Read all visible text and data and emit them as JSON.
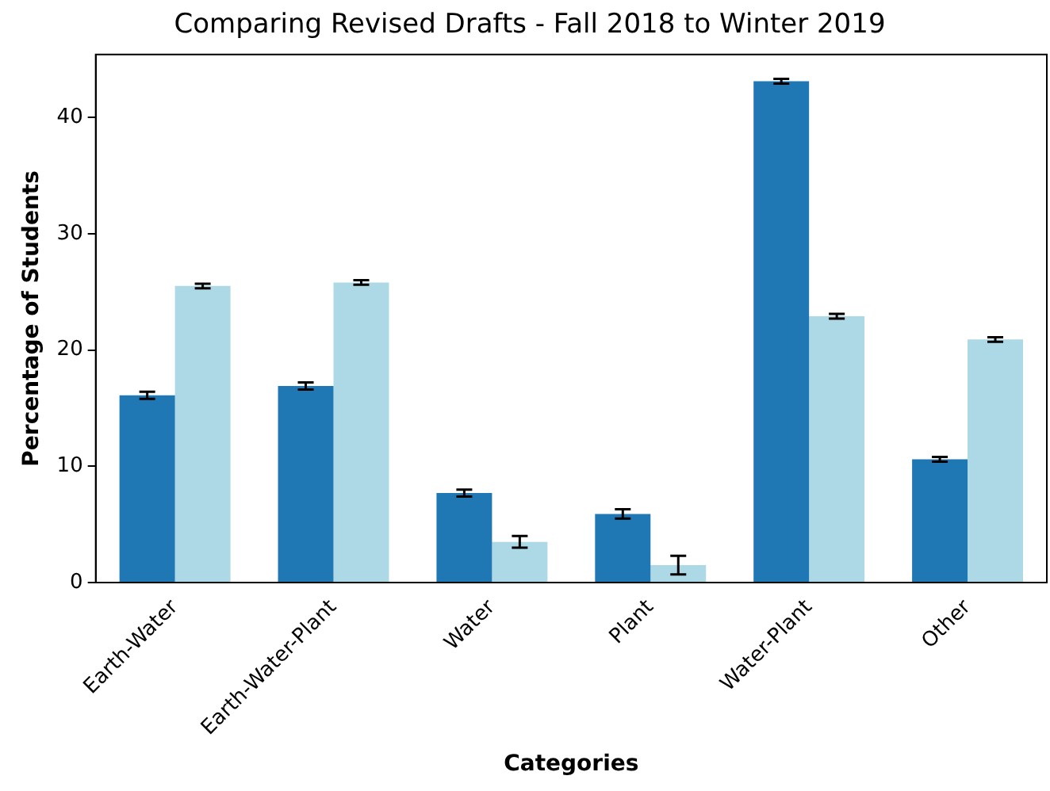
{
  "chart_data": {
    "type": "bar",
    "title": "Comparing Revised Drafts - Fall 2018 to Winter 2019",
    "xlabel": "Categories",
    "ylabel": "Percentage of Students",
    "categories": [
      "Earth-Water",
      "Earth-Water-Plant",
      "Water",
      "Plant",
      "Water-Plant",
      "Other"
    ],
    "series": [
      {
        "color": "#1f77b4",
        "values": [
          16.1,
          16.9,
          7.7,
          5.9,
          43.1,
          10.6
        ],
        "errors": [
          0.3,
          0.3,
          0.3,
          0.4,
          0.2,
          0.2
        ]
      },
      {
        "color": "#add8e6",
        "values": [
          25.5,
          25.8,
          3.5,
          1.5,
          22.9,
          20.9
        ],
        "errors": [
          0.2,
          0.2,
          0.5,
          0.8,
          0.2,
          0.2
        ]
      }
    ],
    "ylim": [
      0,
      45.4
    ],
    "yticks": [
      0,
      10,
      20,
      30,
      40
    ],
    "grid": false,
    "legend": false
  }
}
